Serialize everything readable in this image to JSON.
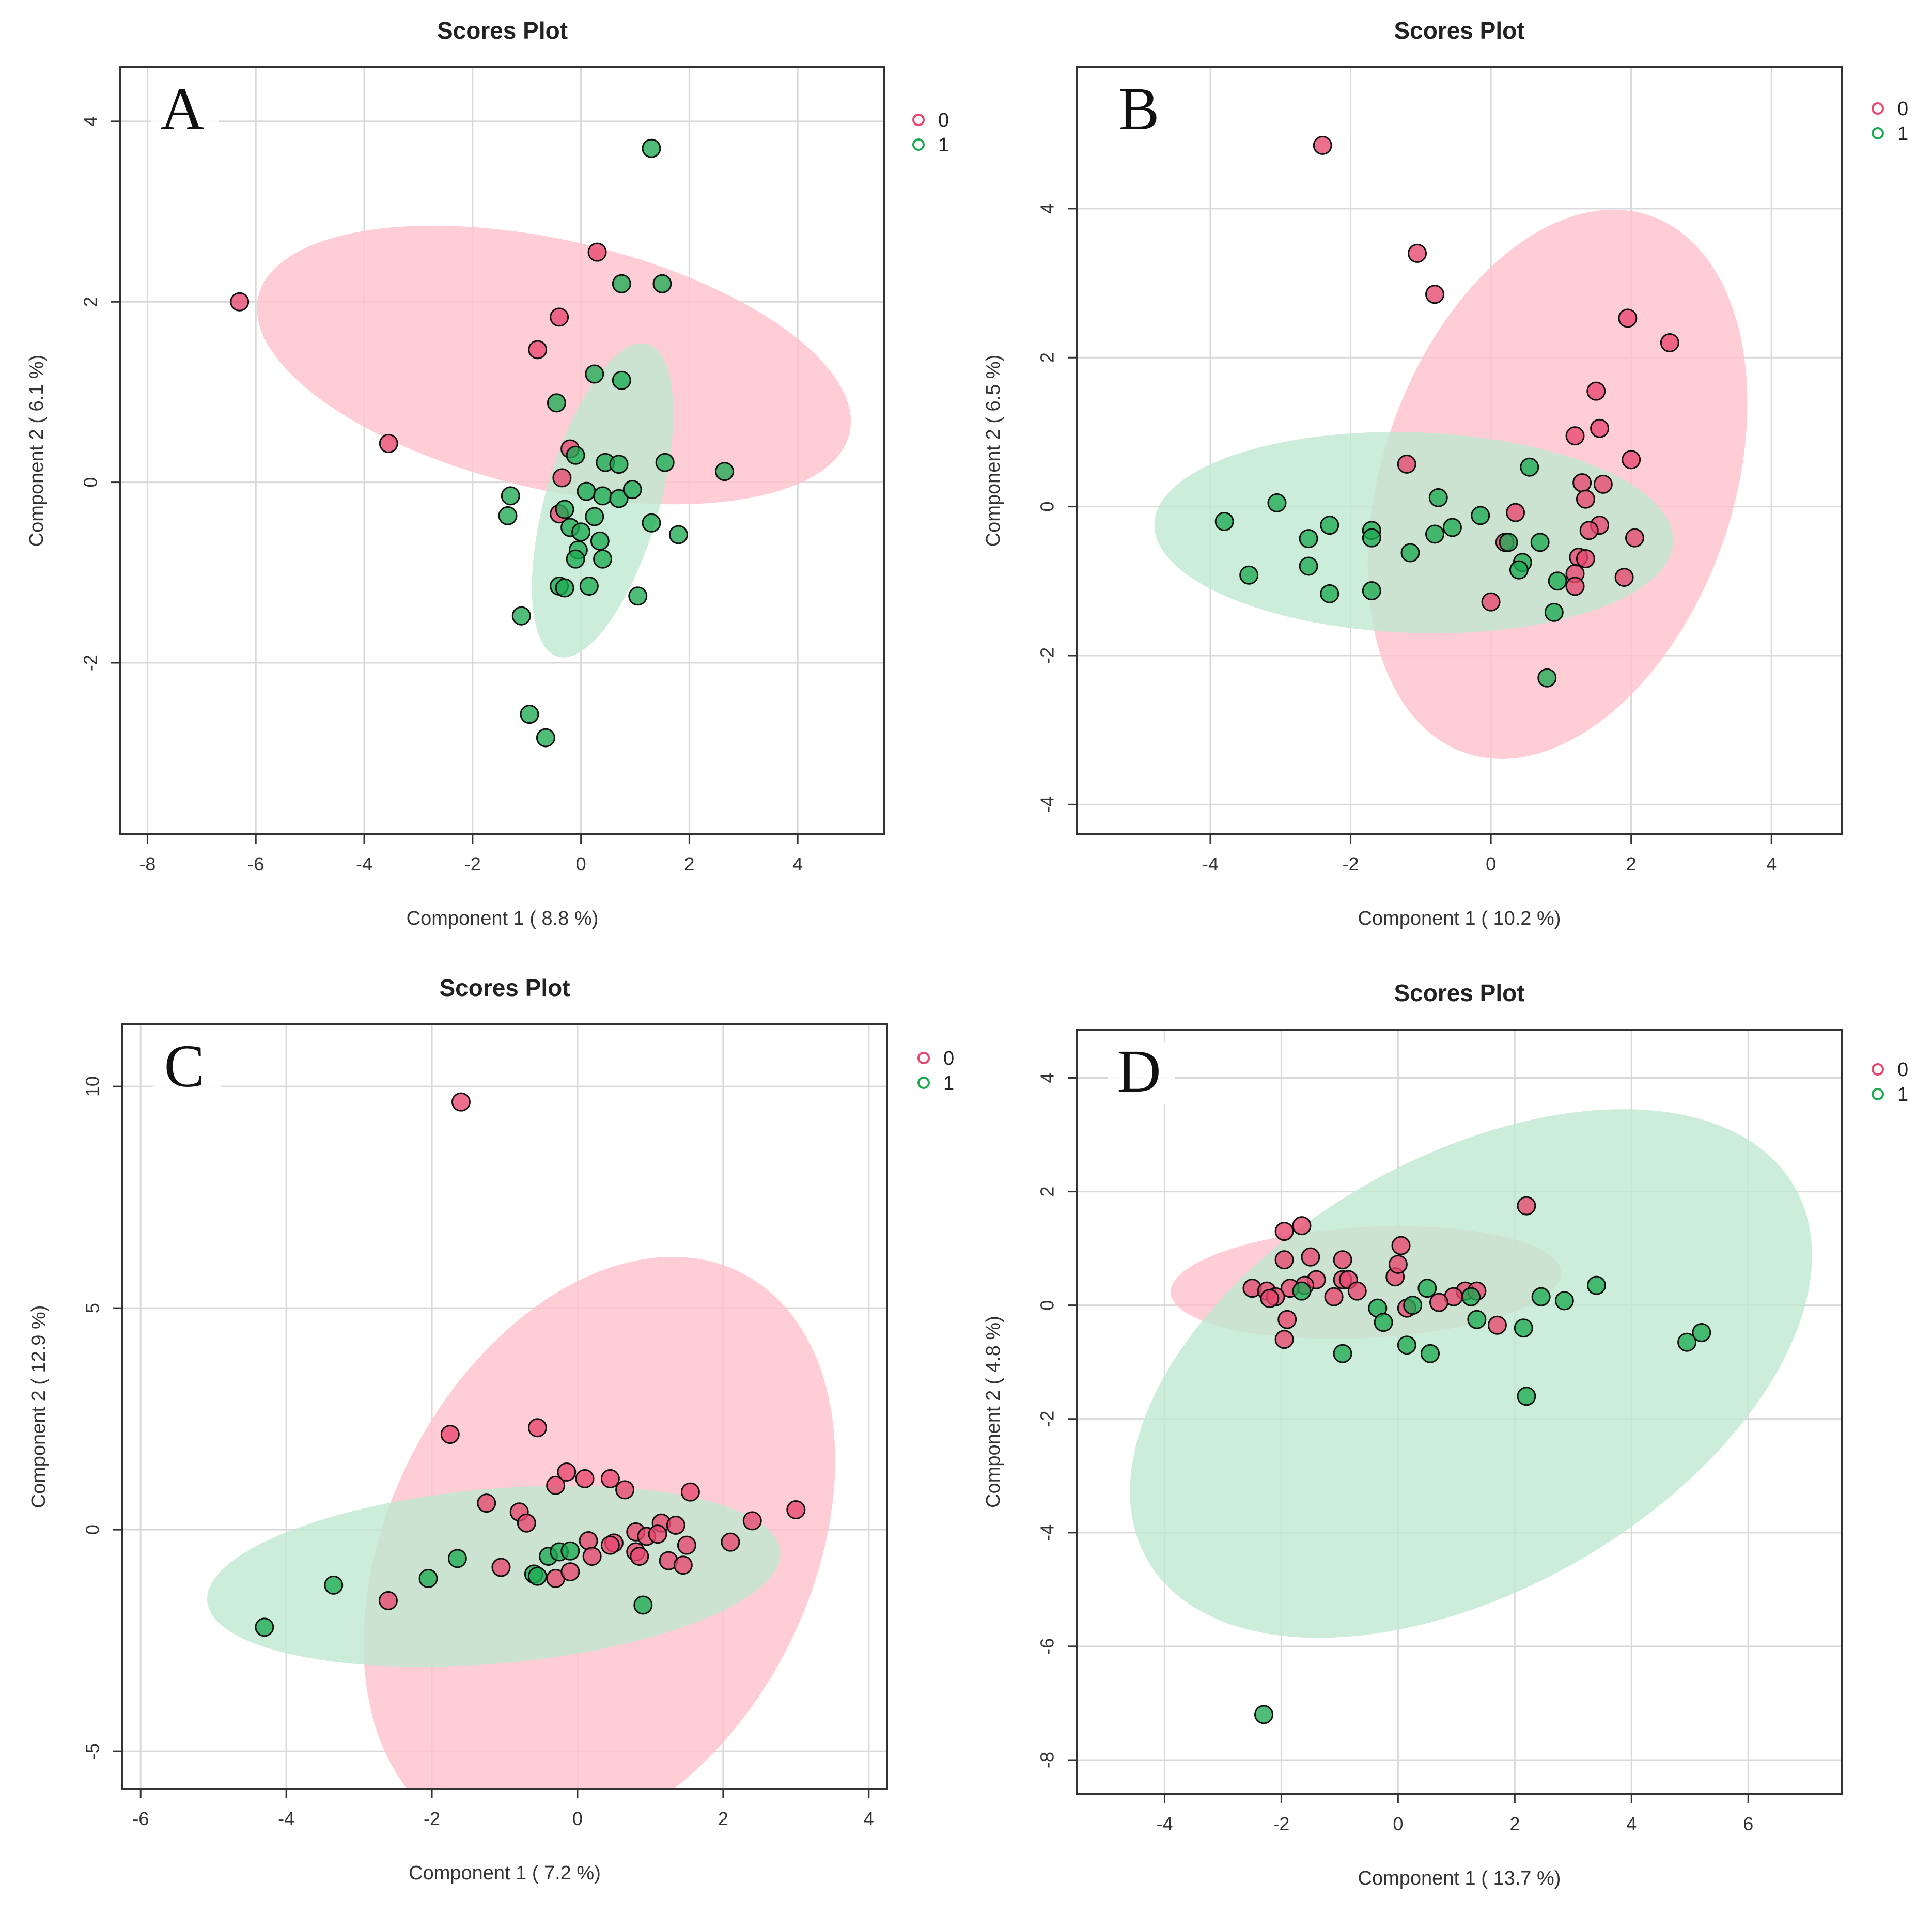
{
  "colors": {
    "group0": "#e8466e",
    "group1": "#1eaa52",
    "ellipse0": "#ffc0cb",
    "ellipse1": "#bfe9cf",
    "grid": "#d9d9d9"
  },
  "chart_data": [
    {
      "type": "scatter",
      "panel_letter": "A",
      "title": "Scores Plot",
      "xlabel": "Component 1 ( 8.8 %)",
      "ylabel": "Component 2 ( 6.1 %)",
      "xlim": [
        -8.5,
        5.6
      ],
      "ylim": [
        -3.9,
        4.6
      ],
      "xticks": [
        -8,
        -6,
        -4,
        -2,
        0,
        2,
        4
      ],
      "yticks": [
        -2,
        0,
        2,
        4
      ],
      "legend": [
        "0",
        "1"
      ],
      "ellipses": [
        {
          "name": "0",
          "cx": -0.5,
          "cy": 1.3,
          "rx": 5.6,
          "ry": 2.3,
          "angle": -13
        },
        {
          "name": "1",
          "cx": 0.4,
          "cy": -0.2,
          "rx": 3.0,
          "ry": 1.05,
          "angle": 74
        }
      ],
      "series": [
        {
          "name": "0",
          "points": [
            [
              -6.3,
              2.0
            ],
            [
              -3.55,
              0.43
            ],
            [
              0.3,
              2.55
            ],
            [
              -0.4,
              1.83
            ],
            [
              -0.8,
              1.47
            ],
            [
              -0.2,
              0.37
            ],
            [
              -0.35,
              0.05
            ],
            [
              -0.4,
              -0.35
            ]
          ]
        },
        {
          "name": "1",
          "points": [
            [
              1.3,
              3.7
            ],
            [
              0.75,
              2.2
            ],
            [
              1.5,
              2.2
            ],
            [
              0.25,
              1.2
            ],
            [
              0.75,
              1.13
            ],
            [
              -0.45,
              0.88
            ],
            [
              -0.1,
              0.3
            ],
            [
              0.45,
              0.22
            ],
            [
              0.7,
              0.2
            ],
            [
              1.55,
              0.22
            ],
            [
              2.65,
              0.12
            ],
            [
              -1.3,
              -0.15
            ],
            [
              -1.35,
              -0.37
            ],
            [
              0.1,
              -0.1
            ],
            [
              0.4,
              -0.15
            ],
            [
              0.7,
              -0.18
            ],
            [
              0.95,
              -0.08
            ],
            [
              -0.3,
              -0.3
            ],
            [
              0.25,
              -0.38
            ],
            [
              -0.2,
              -0.5
            ],
            [
              0.0,
              -0.55
            ],
            [
              -0.05,
              -0.75
            ],
            [
              -0.1,
              -0.85
            ],
            [
              0.35,
              -0.65
            ],
            [
              0.4,
              -0.85
            ],
            [
              1.3,
              -0.45
            ],
            [
              1.8,
              -0.58
            ],
            [
              -0.4,
              -1.15
            ],
            [
              -0.3,
              -1.17
            ],
            [
              0.15,
              -1.15
            ],
            [
              1.05,
              -1.26
            ],
            [
              -1.1,
              -1.48
            ],
            [
              -0.95,
              -2.57
            ],
            [
              -0.65,
              -2.83
            ]
          ]
        }
      ]
    },
    {
      "type": "scatter",
      "panel_letter": "B",
      "title": "Scores Plot",
      "xlabel": "Component 1 ( 10.2 %)",
      "ylabel": "Component 2 ( 6.5 %)",
      "xlim": [
        -5.9,
        5.0
      ],
      "ylim": [
        -4.4,
        5.9
      ],
      "xticks": [
        -4,
        -2,
        0,
        2,
        4
      ],
      "yticks": [
        -4,
        -2,
        0,
        2,
        4
      ],
      "legend": [
        "0",
        "1"
      ],
      "ellipses": [
        {
          "name": "0",
          "cx": 0.95,
          "cy": 0.3,
          "rx": 4.05,
          "ry": 2.5,
          "angle": 71
        },
        {
          "name": "1",
          "cx": -1.1,
          "cy": -0.35,
          "rx": 3.7,
          "ry": 1.43,
          "angle": -2
        }
      ],
      "series": [
        {
          "name": "0",
          "points": [
            [
              -2.4,
              4.85
            ],
            [
              -1.05,
              3.4
            ],
            [
              -0.8,
              2.85
            ],
            [
              1.95,
              2.53
            ],
            [
              2.55,
              2.2
            ],
            [
              1.5,
              1.55
            ],
            [
              1.55,
              1.05
            ],
            [
              1.2,
              0.95
            ],
            [
              2.0,
              0.63
            ],
            [
              1.3,
              0.32
            ],
            [
              1.6,
              0.3
            ],
            [
              1.35,
              0.1
            ],
            [
              -1.2,
              0.57
            ],
            [
              0.35,
              -0.08
            ],
            [
              1.55,
              -0.25
            ],
            [
              1.4,
              -0.32
            ],
            [
              2.05,
              -0.42
            ],
            [
              0.2,
              -0.48
            ],
            [
              1.25,
              -0.68
            ],
            [
              1.35,
              -0.7
            ],
            [
              1.2,
              -0.9
            ],
            [
              1.9,
              -0.95
            ],
            [
              1.2,
              -1.07
            ],
            [
              0.0,
              -1.28
            ]
          ]
        },
        {
          "name": "1",
          "points": [
            [
              -3.8,
              -0.2
            ],
            [
              -3.05,
              0.05
            ],
            [
              -3.45,
              -0.92
            ],
            [
              -2.6,
              -0.43
            ],
            [
              -2.6,
              -0.8
            ],
            [
              -2.3,
              -0.25
            ],
            [
              -2.3,
              -1.17
            ],
            [
              -1.7,
              -0.32
            ],
            [
              -1.7,
              -0.42
            ],
            [
              -1.7,
              -1.13
            ],
            [
              -1.15,
              -0.62
            ],
            [
              -0.75,
              0.12
            ],
            [
              -0.8,
              -0.37
            ],
            [
              -0.55,
              -0.28
            ],
            [
              -0.15,
              -0.12
            ],
            [
              0.25,
              -0.48
            ],
            [
              0.55,
              0.53
            ],
            [
              0.7,
              -0.48
            ],
            [
              0.45,
              -0.75
            ],
            [
              0.4,
              -0.85
            ],
            [
              0.95,
              -1.0
            ],
            [
              0.9,
              -1.42
            ],
            [
              0.8,
              -2.3
            ]
          ]
        }
      ]
    },
    {
      "type": "scatter",
      "panel_letter": "C",
      "title": "Scores Plot",
      "xlabel": "Component 1 ( 7.2 %)",
      "ylabel": "Component 2 ( 12.9 %)",
      "xlim": [
        -6.25,
        4.25
      ],
      "ylim": [
        -5.85,
        11.4
      ],
      "xticks": [
        -6,
        -4,
        -2,
        0,
        2,
        4
      ],
      "yticks": [
        -5,
        0,
        5,
        10
      ],
      "legend": [
        "0",
        "1"
      ],
      "ellipses": [
        {
          "name": "0",
          "cx": 0.3,
          "cy": -0.5,
          "rx": 4.3,
          "ry": 2.9,
          "angle": 63
        },
        {
          "name": "1",
          "cx": -1.15,
          "cy": -1.05,
          "rx": 3.95,
          "ry": 1.2,
          "angle": 5
        }
      ],
      "series": [
        {
          "name": "0",
          "points": [
            [
              -1.6,
              9.65
            ],
            [
              -1.75,
              2.15
            ],
            [
              -0.55,
              2.3
            ],
            [
              -0.15,
              1.3
            ],
            [
              0.1,
              1.15
            ],
            [
              -0.3,
              1.0
            ],
            [
              0.45,
              1.15
            ],
            [
              0.65,
              0.9
            ],
            [
              1.55,
              0.85
            ],
            [
              -1.25,
              0.6
            ],
            [
              -0.8,
              0.4
            ],
            [
              -0.7,
              0.15
            ],
            [
              1.15,
              0.15
            ],
            [
              1.35,
              0.1
            ],
            [
              2.4,
              0.2
            ],
            [
              3.0,
              0.45
            ],
            [
              0.8,
              -0.05
            ],
            [
              0.95,
              -0.15
            ],
            [
              1.1,
              -0.1
            ],
            [
              0.15,
              -0.25
            ],
            [
              0.5,
              -0.3
            ],
            [
              0.45,
              -0.35
            ],
            [
              0.8,
              -0.5
            ],
            [
              0.85,
              -0.6
            ],
            [
              1.5,
              -0.35
            ],
            [
              2.1,
              -0.28
            ],
            [
              0.2,
              -0.6
            ],
            [
              1.25,
              -0.7
            ],
            [
              1.45,
              -0.8
            ],
            [
              -1.05,
              -0.85
            ],
            [
              -0.3,
              -1.1
            ],
            [
              -0.1,
              -0.95
            ],
            [
              -2.6,
              -1.6
            ]
          ]
        },
        {
          "name": "1",
          "points": [
            [
              -4.3,
              -2.2
            ],
            [
              -3.35,
              -1.25
            ],
            [
              -2.05,
              -1.1
            ],
            [
              -1.65,
              -0.65
            ],
            [
              -0.4,
              -0.6
            ],
            [
              -0.25,
              -0.5
            ],
            [
              -0.1,
              -0.48
            ],
            [
              -0.6,
              -1.0
            ],
            [
              -0.55,
              -1.05
            ],
            [
              0.9,
              -1.7
            ]
          ]
        }
      ]
    },
    {
      "type": "scatter",
      "panel_letter": "D",
      "title": "Scores Plot",
      "xlabel": "Component 1 ( 13.7 %)",
      "ylabel": "Component 2 ( 4.8 %)",
      "xlim": [
        -5.5,
        7.6
      ],
      "ylim": [
        -8.6,
        4.85
      ],
      "xticks": [
        -4,
        -2,
        0,
        2,
        4,
        6
      ],
      "yticks": [
        -8,
        -6,
        -4,
        -2,
        0,
        2,
        4
      ],
      "legend": [
        "0",
        "1"
      ],
      "ellipses": [
        {
          "name": "0",
          "cx": -0.55,
          "cy": 0.4,
          "rx": 3.35,
          "ry": 0.95,
          "angle": 3
        },
        {
          "name": "1",
          "cx": 1.25,
          "cy": -1.2,
          "rx": 6.4,
          "ry": 3.7,
          "angle": 30
        }
      ],
      "series": [
        {
          "name": "0",
          "points": [
            [
              2.2,
              1.75
            ],
            [
              -1.65,
              1.4
            ],
            [
              -1.95,
              1.3
            ],
            [
              0.05,
              1.05
            ],
            [
              -1.5,
              0.85
            ],
            [
              -1.95,
              0.8
            ],
            [
              -0.95,
              0.8
            ],
            [
              -0.05,
              0.5
            ],
            [
              0.0,
              0.72
            ],
            [
              -1.4,
              0.45
            ],
            [
              -0.95,
              0.45
            ],
            [
              -0.85,
              0.45
            ],
            [
              -1.6,
              0.35
            ],
            [
              -1.85,
              0.3
            ],
            [
              -2.5,
              0.3
            ],
            [
              -2.25,
              0.25
            ],
            [
              -2.1,
              0.15
            ],
            [
              -2.2,
              0.12
            ],
            [
              -1.1,
              0.15
            ],
            [
              -0.7,
              0.25
            ],
            [
              1.15,
              0.25
            ],
            [
              1.35,
              0.25
            ],
            [
              0.95,
              0.15
            ],
            [
              0.7,
              0.05
            ],
            [
              0.15,
              -0.05
            ],
            [
              1.7,
              -0.35
            ],
            [
              -1.9,
              -0.25
            ],
            [
              -1.95,
              -0.6
            ]
          ]
        },
        {
          "name": "1",
          "points": [
            [
              -1.65,
              0.25
            ],
            [
              0.5,
              0.3
            ],
            [
              1.25,
              0.15
            ],
            [
              2.45,
              0.15
            ],
            [
              2.85,
              0.08
            ],
            [
              3.4,
              0.35
            ],
            [
              0.25,
              0.0
            ],
            [
              -0.35,
              -0.05
            ],
            [
              -0.25,
              -0.3
            ],
            [
              1.35,
              -0.25
            ],
            [
              2.15,
              -0.4
            ],
            [
              -0.95,
              -0.85
            ],
            [
              0.15,
              -0.7
            ],
            [
              0.55,
              -0.85
            ],
            [
              5.2,
              -0.48
            ],
            [
              4.95,
              -0.65
            ],
            [
              2.2,
              -1.6
            ],
            [
              -2.3,
              -7.2
            ]
          ]
        }
      ]
    }
  ]
}
